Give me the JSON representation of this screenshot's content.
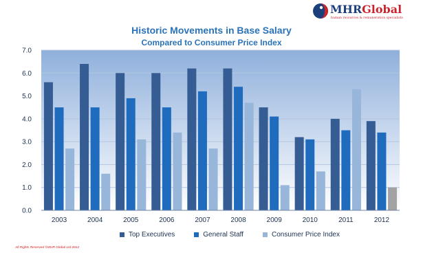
{
  "brand": {
    "name_part1": "MHR",
    "name_part2": "Global",
    "tagline": "human resources & remuneration specialists"
  },
  "chart_data": {
    "type": "bar",
    "title": "Historic Movements in Base Salary",
    "subtitle": "Compared to Consumer Price Index",
    "categories": [
      "2003",
      "2004",
      "2005",
      "2006",
      "2007",
      "2008",
      "2009",
      "2010",
      "2011",
      "2012"
    ],
    "series": [
      {
        "name": "Top Executives",
        "color": "#355c93",
        "values": [
          5.6,
          6.4,
          6.0,
          6.0,
          6.2,
          6.2,
          4.5,
          3.2,
          4.0,
          3.9
        ]
      },
      {
        "name": "General Staff",
        "color": "#1f6cbf",
        "values": [
          4.5,
          4.5,
          4.9,
          4.5,
          5.2,
          5.4,
          4.1,
          3.1,
          3.5,
          3.4
        ]
      },
      {
        "name": "Consumer Price Index",
        "color": "#98b6da",
        "values": [
          2.7,
          1.6,
          3.1,
          3.4,
          2.7,
          4.7,
          1.1,
          1.7,
          5.3,
          1.0
        ]
      }
    ],
    "highlight": {
      "series": 2,
      "index": 9,
      "color": "#a3a3a3"
    },
    "ylim": [
      0,
      7.0
    ],
    "yticks": [
      "0.0",
      "1.0",
      "2.0",
      "3.0",
      "4.0",
      "5.0",
      "6.0",
      "7.0"
    ],
    "grid": true,
    "legend_position": "bottom",
    "background_gradient": [
      "#8fb0dc",
      "#ffffff"
    ]
  },
  "footer": {
    "copyright": "All Rights Reserved ©MHR Global Ltd 2012"
  }
}
